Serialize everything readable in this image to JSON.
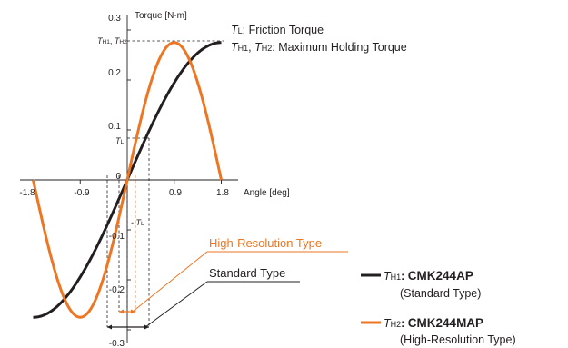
{
  "chart_data": {
    "type": "line",
    "ylabel": "Torque [N·m]",
    "xlabel": "Angle [deg]",
    "x_ticks": [
      "-1.8",
      "-0.9",
      "0.9",
      "1.8"
    ],
    "y_ticks_pos": [
      "0.3",
      "0.2",
      "0.1",
      "0"
    ],
    "y_ticks_neg": [
      "-0.1",
      "-0.2",
      "-0.3"
    ],
    "xlim": [
      -1.8,
      1.8
    ],
    "ylim": [
      -0.3,
      0.3
    ],
    "y_marker_labels": {
      "th": {
        "t1": "T",
        "s1": "H1",
        "sep": ", ",
        "t2": "T",
        "s2": "H2"
      },
      "tl": {
        "t": "T",
        "s": "L"
      },
      "tl_neg": {
        "t": "- T",
        "s": "L"
      }
    },
    "series": [
      {
        "name": "CMK244AP",
        "color": "#231f20",
        "x": [
          -1.8,
          -1.35,
          -0.9,
          -0.45,
          0,
          0.45,
          0.9,
          1.35,
          1.8
        ],
        "y": [
          -0.275,
          -0.254,
          -0.194,
          -0.105,
          0.0,
          0.105,
          0.194,
          0.254,
          0.275
        ]
      },
      {
        "name": "CMK244MAP",
        "color": "#ee7623",
        "x": [
          -1.8,
          -1.35,
          -0.9,
          -0.45,
          0,
          0.45,
          0.9,
          1.35,
          1.8
        ],
        "y": [
          0.0,
          -0.194,
          -0.275,
          -0.194,
          0.0,
          0.194,
          0.275,
          0.194,
          0.0
        ]
      }
    ],
    "annotations": {
      "tl_def": {
        "t": "T",
        "s": "L",
        "text": ": Friction Torque"
      },
      "th_def": {
        "t1": "T",
        "s1": "H1",
        "sep": ", ",
        "t2": "T",
        "s2": "H2",
        "text": ": Maximum Holding Torque"
      },
      "high_res": "High-Resolution Type",
      "standard": "Standard Type"
    },
    "legend": [
      {
        "t": "T",
        "s": "H1",
        "colon": ": ",
        "model": "CMK244AP",
        "sub": "(Standard Type)",
        "color": "#231f20"
      },
      {
        "t": "T",
        "s": "H2",
        "colon": ": ",
        "model": "CMK244MAP",
        "sub": "(High-Resolution Type)",
        "color": "#ee7623"
      }
    ]
  }
}
